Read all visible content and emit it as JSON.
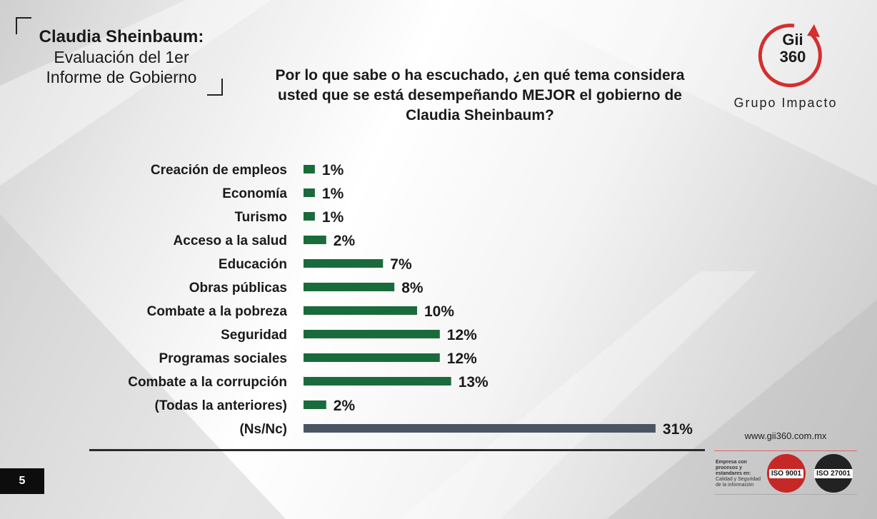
{
  "header": {
    "title_main": "Claudia Sheinbaum:",
    "title_line2": "Evaluación del 1er",
    "title_line3": "Informe de Gobierno",
    "question": "Por lo que sabe o ha escuchado, ¿en qué tema considera usted que se está desempeñando MEJOR el gobierno de Claudia Sheinbaum?"
  },
  "logo": {
    "line1": "Gii",
    "line2": "360",
    "subtitle": "Grupo Impacto"
  },
  "footer": {
    "url": "www.gii360.com.mx",
    "cert_text_bold": "Empresa con procesos y estandares en:",
    "cert_text": "Calidad y Seguridad de la información",
    "seal_1": "ISO 9001",
    "seal_2": "ISO 27001",
    "page_number": "5"
  },
  "chart_data": {
    "type": "bar",
    "orientation": "horizontal",
    "categories": [
      "Creación de empleos",
      "Economía",
      "Turismo",
      "Acceso a la salud",
      "Educación",
      "Obras públicas",
      "Combate a la pobreza",
      "Seguridad",
      "Programas sociales",
      "Combate a la corrupción",
      "(Todas la anteriores)",
      "(Ns/Nc)"
    ],
    "values": [
      1,
      1,
      1,
      2,
      7,
      8,
      10,
      12,
      12,
      13,
      2,
      31
    ],
    "value_labels": [
      "1%",
      "1%",
      "1%",
      "2%",
      "7%",
      "8%",
      "10%",
      "12%",
      "12%",
      "13%",
      "2%",
      "31%"
    ],
    "unit": "%",
    "colors": {
      "bar": "#1a6b3c",
      "bar_last": "#4a5561"
    },
    "grid": false,
    "legend": "none"
  }
}
